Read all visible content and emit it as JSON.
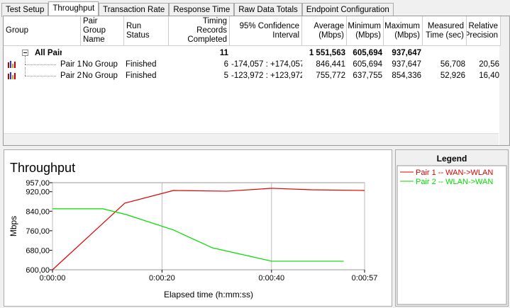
{
  "tabs": [
    "Test Setup",
    "Throughput",
    "Transaction Rate",
    "Response Time",
    "Raw Data Totals",
    "Endpoint Configuration"
  ],
  "table": {
    "columns": [
      {
        "key": "group",
        "label": "Group"
      },
      {
        "key": "pair_group_name",
        "label": "Pair Group Name"
      },
      {
        "key": "run_status",
        "label": "Run Status"
      },
      {
        "key": "records",
        "label": "Timing Records Completed"
      },
      {
        "key": "confidence",
        "label": "95% Confidence Interval"
      },
      {
        "key": "average",
        "label": "Average (Mbps)"
      },
      {
        "key": "minimum",
        "label": "Minimum (Mbps)"
      },
      {
        "key": "maximum",
        "label": "Maximum (Mbps)"
      },
      {
        "key": "measured_time",
        "label": "Measured Time (sec)"
      },
      {
        "key": "precision",
        "label": "Relative Precision"
      }
    ],
    "rows": [
      {
        "group": "All Pairs",
        "records": "11",
        "average": "1 551,563",
        "minimum": "605,694",
        "maximum": "937,647"
      },
      {
        "group": "Pair 1",
        "pair_group_name": "No Group",
        "run_status": "Finished",
        "records": "6",
        "confidence": "-174,057 : +174,057",
        "average": "846,441",
        "minimum": "605,694",
        "maximum": "937,647",
        "measured_time": "56,708",
        "precision": "20,56"
      },
      {
        "group": "Pair 2",
        "pair_group_name": "No Group",
        "run_status": "Finished",
        "records": "5",
        "confidence": "-123,972 : +123,972",
        "average": "755,772",
        "minimum": "637,755",
        "maximum": "854,336",
        "measured_time": "52,926",
        "precision": "16,40"
      }
    ]
  },
  "chart_data": {
    "type": "line",
    "title": "Throughput",
    "x_label": "Elapsed time (h:mm:ss)",
    "y_label": "Mbps",
    "xlim": [
      0,
      57
    ],
    "xticks": [
      {
        "value": 0,
        "label": "0:00:00"
      },
      {
        "value": 20,
        "label": "0:00:20"
      },
      {
        "value": 40,
        "label": "0:00:40"
      },
      {
        "value": 57,
        "label": "0:00:57"
      }
    ],
    "ylim": [
      600,
      957
    ],
    "yticks": [
      {
        "value": 600,
        "label": "600,00"
      },
      {
        "value": 680,
        "label": "680,00"
      },
      {
        "value": 760,
        "label": "760,00"
      },
      {
        "value": 840,
        "label": "840,00"
      },
      {
        "value": 920,
        "label": "920,00"
      },
      {
        "value": 957,
        "label": "957,00"
      }
    ],
    "grid": "x",
    "legend_title": "Legend",
    "series": [
      {
        "name": "Pair 1 -- WAN->WLAN",
        "color": "#e00000",
        "x": [
          0,
          13.2,
          22.1,
          31.8,
          40.1,
          47.3,
          57
        ],
        "values": [
          600,
          873,
          925,
          922,
          934,
          928,
          925
        ]
      },
      {
        "name": "Pair 2 -- WLAN->WAN",
        "color": "#00dd00",
        "x": [
          0,
          9.2,
          13.5,
          22.1,
          29.2,
          40.1,
          53.2
        ],
        "values": [
          850,
          850,
          826,
          763,
          690,
          635,
          635
        ]
      }
    ]
  }
}
